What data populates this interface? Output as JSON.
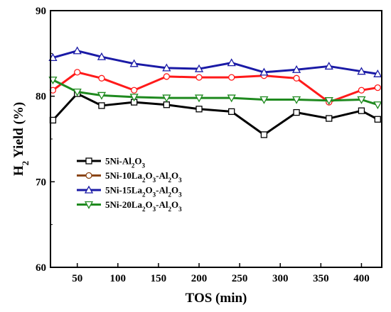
{
  "chart_data": {
    "type": "line",
    "xlabel": "TOS (min)",
    "ylabel": {
      "main": "H",
      "sub": "2",
      "rest": " Yield (%)"
    },
    "xlim": [
      17,
      425
    ],
    "ylim": [
      60,
      90
    ],
    "xticks": [
      50,
      100,
      150,
      200,
      250,
      300,
      350,
      400
    ],
    "yticks": [
      60,
      70,
      80,
      90
    ],
    "legend_position": "lower-left",
    "grid": false,
    "x": [
      20,
      50,
      80,
      120,
      160,
      200,
      240,
      280,
      320,
      360,
      400,
      420
    ],
    "series": [
      {
        "name": [
          {
            "t": "5Ni-Al"
          },
          {
            "t": "2",
            "sub": true
          },
          {
            "t": "O"
          },
          {
            "t": "3",
            "sub": true
          }
        ],
        "color": "#000000",
        "marker": "square",
        "values": [
          77.2,
          80.3,
          78.9,
          79.3,
          79.0,
          78.5,
          78.2,
          75.5,
          78.1,
          77.4,
          78.3,
          77.3
        ]
      },
      {
        "name": [
          {
            "t": "5Ni-10La"
          },
          {
            "t": "2",
            "sub": true
          },
          {
            "t": "O"
          },
          {
            "t": "3",
            "sub": true
          },
          {
            "t": "-Al"
          },
          {
            "t": "2",
            "sub": true
          },
          {
            "t": "O"
          },
          {
            "t": "3",
            "sub": true
          }
        ],
        "color": "#ff1a1a",
        "legend_color": "#8b4513",
        "marker": "circle",
        "values": [
          80.7,
          82.8,
          82.1,
          80.7,
          82.3,
          82.2,
          82.2,
          82.4,
          82.1,
          79.3,
          80.7,
          81.0
        ]
      },
      {
        "name": [
          {
            "t": "5Ni-15La"
          },
          {
            "t": "2",
            "sub": true
          },
          {
            "t": "O"
          },
          {
            "t": "3",
            "sub": true
          },
          {
            "t": "-Al"
          },
          {
            "t": "2",
            "sub": true
          },
          {
            "t": "O"
          },
          {
            "t": "3",
            "sub": true
          }
        ],
        "color": "#1a1aa6",
        "marker": "triangle-up",
        "values": [
          84.5,
          85.3,
          84.6,
          83.8,
          83.3,
          83.2,
          83.9,
          82.8,
          83.1,
          83.5,
          82.9,
          82.6
        ]
      },
      {
        "name": [
          {
            "t": "5Ni-20La"
          },
          {
            "t": "2",
            "sub": true
          },
          {
            "t": "O"
          },
          {
            "t": "3",
            "sub": true
          },
          {
            "t": "-Al"
          },
          {
            "t": "2",
            "sub": true
          },
          {
            "t": "O"
          },
          {
            "t": "3",
            "sub": true
          }
        ],
        "color": "#1f8a1f",
        "marker": "triangle-down",
        "values": [
          81.9,
          80.5,
          80.1,
          79.9,
          79.8,
          79.8,
          79.8,
          79.6,
          79.6,
          79.5,
          79.6,
          79.0
        ]
      }
    ]
  }
}
